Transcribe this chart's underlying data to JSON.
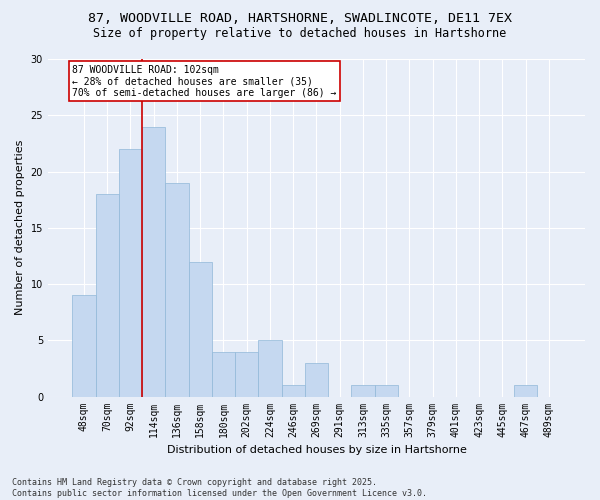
{
  "title1": "87, WOODVILLE ROAD, HARTSHORNE, SWADLINCOTE, DE11 7EX",
  "title2": "Size of property relative to detached houses in Hartshorne",
  "xlabel": "Distribution of detached houses by size in Hartshorne",
  "ylabel": "Number of detached properties",
  "bar_labels": [
    "48sqm",
    "70sqm",
    "92sqm",
    "114sqm",
    "136sqm",
    "158sqm",
    "180sqm",
    "202sqm",
    "224sqm",
    "246sqm",
    "269sqm",
    "291sqm",
    "313sqm",
    "335sqm",
    "357sqm",
    "379sqm",
    "401sqm",
    "423sqm",
    "445sqm",
    "467sqm",
    "489sqm"
  ],
  "bar_values": [
    9,
    18,
    22,
    24,
    19,
    12,
    4,
    4,
    5,
    1,
    3,
    0,
    1,
    1,
    0,
    0,
    0,
    0,
    0,
    1,
    0
  ],
  "bar_color": "#c5d8f0",
  "bar_edge_color": "#90b8d8",
  "red_line_index": 2.5,
  "annotation_text": "87 WOODVILLE ROAD: 102sqm\n← 28% of detached houses are smaller (35)\n70% of semi-detached houses are larger (86) →",
  "annotation_box_facecolor": "#ffffff",
  "annotation_box_edgecolor": "#cc0000",
  "ylim": [
    0,
    30
  ],
  "yticks": [
    0,
    5,
    10,
    15,
    20,
    25,
    30
  ],
  "bg_color": "#e8eef8",
  "plot_bg_color": "#e8eef8",
  "title_fontsize": 9.5,
  "subtitle_fontsize": 8.5,
  "axis_label_fontsize": 8,
  "tick_fontsize": 7,
  "annotation_fontsize": 7,
  "footnote_fontsize": 6,
  "footnote": "Contains HM Land Registry data © Crown copyright and database right 2025.\nContains public sector information licensed under the Open Government Licence v3.0."
}
